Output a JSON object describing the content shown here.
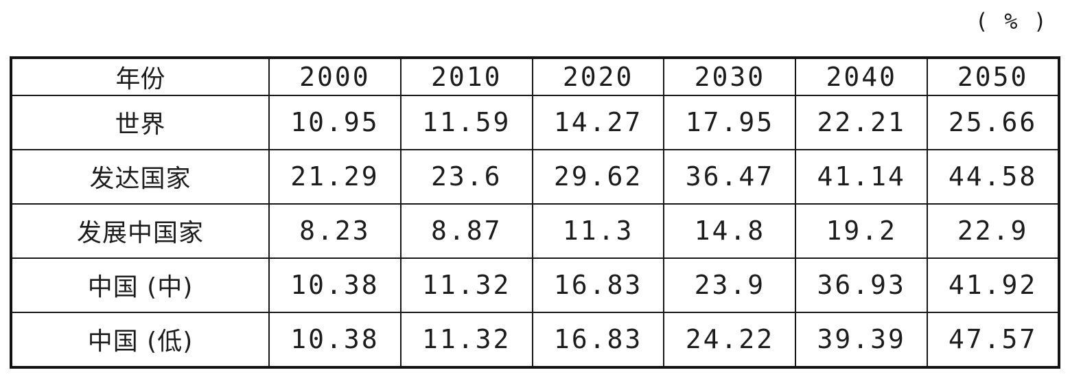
{
  "unit_label": "( % )",
  "table": {
    "header": [
      "年份",
      "2000",
      "2010",
      "2020",
      "2030",
      "2040",
      "2050"
    ],
    "rows": [
      {
        "label": "世界",
        "values": [
          "10.95",
          "11.59",
          "14.27",
          "17.95",
          "22.21",
          "25.66"
        ]
      },
      {
        "label": "发达国家",
        "values": [
          "21.29",
          "23.6",
          "29.62",
          "36.47",
          "41.14",
          "44.58"
        ]
      },
      {
        "label": "发展中国家",
        "values": [
          "8.23",
          "8.87",
          "11.3",
          "14.8",
          "19.2",
          "22.9"
        ]
      },
      {
        "label": "中国 (中)",
        "values": [
          "10.38",
          "11.32",
          "16.83",
          "23.9",
          "36.93",
          "41.92"
        ]
      },
      {
        "label": "中国 (低)",
        "values": [
          "10.38",
          "11.32",
          "16.83",
          "24.22",
          "39.39",
          "47.57"
        ]
      }
    ]
  },
  "chart_data": {
    "type": "table",
    "title": "",
    "unit": "%",
    "columns": [
      "年份",
      "2000",
      "2010",
      "2020",
      "2030",
      "2040",
      "2050"
    ],
    "series": [
      {
        "name": "世界",
        "values": [
          10.95,
          11.59,
          14.27,
          17.95,
          22.21,
          25.66
        ]
      },
      {
        "name": "发达国家",
        "values": [
          21.29,
          23.6,
          29.62,
          36.47,
          41.14,
          44.58
        ]
      },
      {
        "name": "发展中国家",
        "values": [
          8.23,
          8.87,
          11.3,
          14.8,
          19.2,
          22.9
        ]
      },
      {
        "name": "中国 (中)",
        "values": [
          10.38,
          11.32,
          16.83,
          23.9,
          36.93,
          41.92
        ]
      },
      {
        "name": "中国 (低)",
        "values": [
          10.38,
          11.32,
          16.83,
          24.22,
          39.39,
          47.57
        ]
      }
    ],
    "x": [
      2000,
      2010,
      2020,
      2030,
      2040,
      2050
    ]
  },
  "colors": {
    "background": "#ffffff",
    "border": "#121212",
    "text": "#1c1c1c"
  }
}
